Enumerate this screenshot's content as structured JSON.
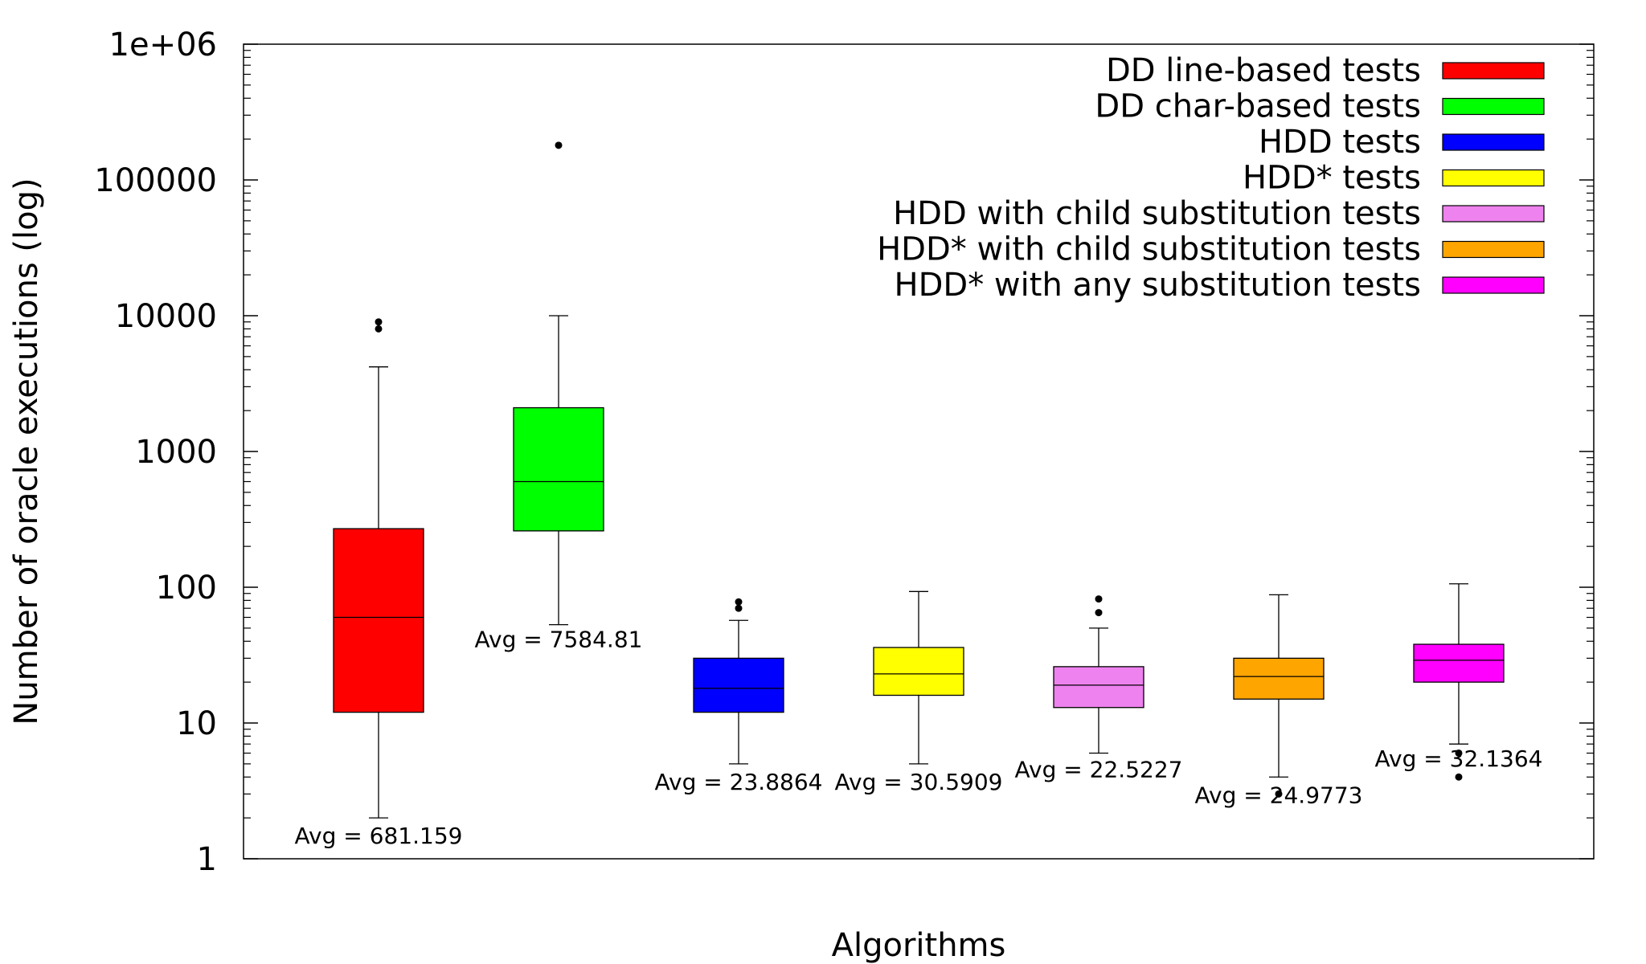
{
  "chart_data": {
    "type": "boxplot",
    "title": "",
    "xlabel": "Algorithms",
    "ylabel": "Number of oracle executions (log)",
    "yscale": "log",
    "ylim": [
      1,
      1000000
    ],
    "yticks": [
      "1",
      "10",
      "100",
      "1000",
      "10000",
      "100000",
      "1e+06"
    ],
    "grid": false,
    "legend_position": "top-right",
    "avg_prefix": "Avg = ",
    "series": [
      {
        "name": "DD line-based tests",
        "color": "#ff0000",
        "whisker_low": 2,
        "q1": 12,
        "median": 60,
        "q3": 270,
        "whisker_high": 4200,
        "outliers": [
          8000,
          9000
        ],
        "avg": "681.159"
      },
      {
        "name": "DD char-based tests",
        "color": "#00ff00",
        "whisker_low": 53,
        "q1": 260,
        "median": 600,
        "q3": 2100,
        "whisker_high": 10000,
        "outliers": [
          180000
        ],
        "avg": "7584.81"
      },
      {
        "name": "HDD tests",
        "color": "#0000ff",
        "whisker_low": 5,
        "q1": 12,
        "median": 18,
        "q3": 30,
        "whisker_high": 57,
        "outliers": [
          70,
          78
        ],
        "avg": "23.8864"
      },
      {
        "name": "HDD* tests",
        "color": "#ffff00",
        "whisker_low": 5,
        "q1": 16,
        "median": 23,
        "q3": 36,
        "whisker_high": 93,
        "outliers": [],
        "avg": "30.5909"
      },
      {
        "name": "HDD with child substitution tests",
        "color": "#ee82ee",
        "whisker_low": 6,
        "q1": 13,
        "median": 19,
        "q3": 26,
        "whisker_high": 50,
        "outliers": [
          65,
          82
        ],
        "avg": "22.5227"
      },
      {
        "name": "HDD* with child substitution tests",
        "color": "#ffa500",
        "whisker_low": 4,
        "q1": 15,
        "median": 22,
        "q3": 30,
        "whisker_high": 88,
        "outliers": [
          3
        ],
        "avg": "24.9773"
      },
      {
        "name": "HDD* with any substitution tests",
        "color": "#ff00ff",
        "whisker_low": 7,
        "q1": 20,
        "median": 29,
        "q3": 38,
        "whisker_high": 106,
        "outliers": [
          4,
          6
        ],
        "avg": "32.1364"
      }
    ]
  }
}
